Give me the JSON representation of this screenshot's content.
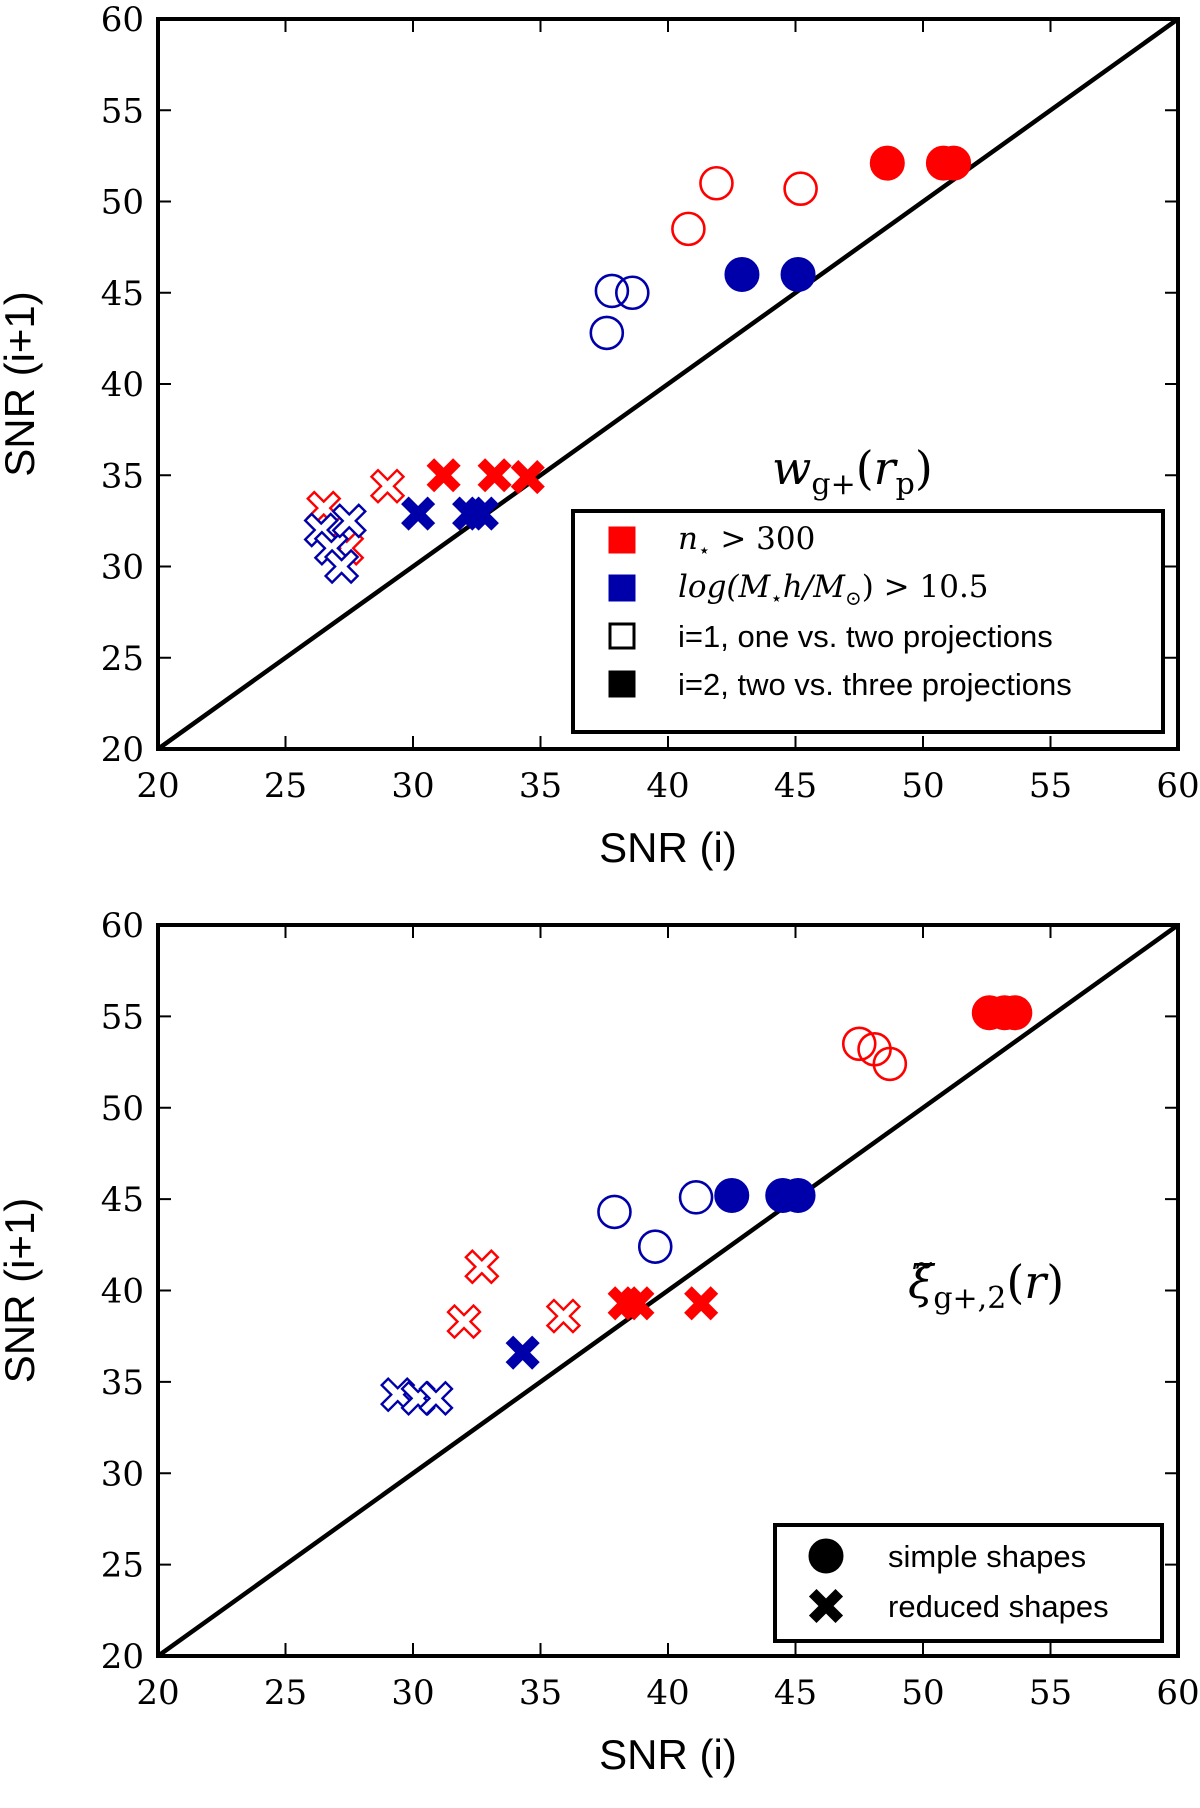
{
  "colors": {
    "red": "#ff0000",
    "blue": "#0000aa",
    "black": "#000000"
  },
  "chart_data": [
    {
      "type": "scatter",
      "panel_label": "w_{g+}(r_p)",
      "panel_label_parts": {
        "main": "w",
        "sub": "g+",
        "open": "(",
        "var": "r",
        "var_sub": "p",
        "close": ")"
      },
      "xlabel": "SNR (i)",
      "ylabel": "SNR (i+1)",
      "xlim": [
        20,
        60
      ],
      "ylim": [
        20,
        60
      ],
      "xticks": [
        20,
        25,
        30,
        35,
        40,
        45,
        50,
        55,
        60
      ],
      "yticks": [
        20,
        25,
        30,
        35,
        40,
        45,
        50,
        55,
        60
      ],
      "reference_line": "y = x",
      "legend": {
        "placement": "lower-right",
        "entries": [
          {
            "marker": "filled-square",
            "color": "red",
            "math": {
              "a": "n",
              "sub": "⋆",
              "b": " > 300"
            }
          },
          {
            "marker": "filled-square",
            "color": "blue",
            "math": {
              "a": "log(M",
              "sub": "⋆",
              "b": "h/M",
              "sub2": "⊙",
              "c": ") > 10.5"
            }
          },
          {
            "marker": "open-square",
            "color": "black",
            "text": "i=1, one vs. two projections"
          },
          {
            "marker": "filled-square",
            "color": "black",
            "text": "i=2, two vs. three projections"
          }
        ]
      },
      "series": [
        {
          "marker": "open-circle",
          "color": "red",
          "points": [
            [
              40.8,
              48.5
            ],
            [
              41.9,
              51.0
            ],
            [
              45.2,
              50.7
            ]
          ]
        },
        {
          "marker": "filled-circle",
          "color": "red",
          "points": [
            [
              48.6,
              52.1
            ],
            [
              50.8,
              52.1
            ],
            [
              51.2,
              52.1
            ]
          ]
        },
        {
          "marker": "open-circle",
          "color": "blue",
          "points": [
            [
              37.6,
              42.8
            ],
            [
              37.8,
              45.1
            ],
            [
              38.6,
              45.0
            ]
          ]
        },
        {
          "marker": "filled-circle",
          "color": "blue",
          "points": [
            [
              42.9,
              46.0
            ],
            [
              45.1,
              46.0
            ]
          ]
        },
        {
          "marker": "open-x",
          "color": "red",
          "points": [
            [
              26.5,
              33.2
            ],
            [
              27.4,
              31.0
            ],
            [
              29.0,
              34.4
            ]
          ]
        },
        {
          "marker": "filled-x",
          "color": "red",
          "points": [
            [
              31.2,
              35.0
            ],
            [
              33.2,
              35.0
            ],
            [
              34.5,
              34.9
            ]
          ]
        },
        {
          "marker": "open-x",
          "color": "blue",
          "points": [
            [
              26.4,
              32.0
            ],
            [
              26.8,
              31.0
            ],
            [
              27.2,
              30.0
            ],
            [
              27.5,
              32.5
            ]
          ]
        },
        {
          "marker": "filled-x",
          "color": "blue",
          "points": [
            [
              30.2,
              32.9
            ],
            [
              32.2,
              32.9
            ],
            [
              32.7,
              32.9
            ]
          ]
        }
      ]
    },
    {
      "type": "scatter",
      "panel_label": "ξ̃_{g+,2}(r)",
      "panel_label_parts": {
        "main": "ξ̃",
        "sub": "g+,2",
        "open": "(",
        "var": "r",
        "var_sub": "",
        "close": ")"
      },
      "xlabel": "SNR (i)",
      "ylabel": "SNR (i+1)",
      "xlim": [
        20,
        60
      ],
      "ylim": [
        20,
        60
      ],
      "xticks": [
        20,
        25,
        30,
        35,
        40,
        45,
        50,
        55,
        60
      ],
      "yticks": [
        20,
        25,
        30,
        35,
        40,
        45,
        50,
        55,
        60
      ],
      "reference_line": "y = x",
      "legend": {
        "placement": "lower-right",
        "entries": [
          {
            "marker": "filled-circle",
            "color": "black",
            "text": "simple shapes"
          },
          {
            "marker": "filled-x",
            "color": "black",
            "text": "reduced shapes"
          }
        ]
      },
      "series": [
        {
          "marker": "open-circle",
          "color": "red",
          "points": [
            [
              47.5,
              53.5
            ],
            [
              48.1,
              53.2
            ],
            [
              48.7,
              52.4
            ]
          ]
        },
        {
          "marker": "filled-circle",
          "color": "red",
          "points": [
            [
              52.6,
              55.2
            ],
            [
              53.2,
              55.2
            ],
            [
              53.6,
              55.2
            ]
          ]
        },
        {
          "marker": "open-circle",
          "color": "blue",
          "points": [
            [
              37.9,
              44.3
            ],
            [
              39.5,
              42.4
            ],
            [
              41.1,
              45.1
            ]
          ]
        },
        {
          "marker": "filled-circle",
          "color": "blue",
          "points": [
            [
              42.5,
              45.2
            ],
            [
              44.5,
              45.2
            ],
            [
              45.1,
              45.2
            ]
          ]
        },
        {
          "marker": "open-x",
          "color": "red",
          "points": [
            [
              32.0,
              38.3
            ],
            [
              32.7,
              41.3
            ],
            [
              35.9,
              38.6
            ]
          ]
        },
        {
          "marker": "filled-x",
          "color": "red",
          "points": [
            [
              38.3,
              39.3
            ],
            [
              38.8,
              39.3
            ],
            [
              41.3,
              39.3
            ]
          ]
        },
        {
          "marker": "open-x",
          "color": "blue",
          "points": [
            [
              29.4,
              34.3
            ],
            [
              30.2,
              34.1
            ],
            [
              30.9,
              34.1
            ]
          ]
        },
        {
          "marker": "filled-x",
          "color": "blue",
          "points": [
            [
              34.3,
              36.6
            ]
          ]
        }
      ]
    }
  ]
}
